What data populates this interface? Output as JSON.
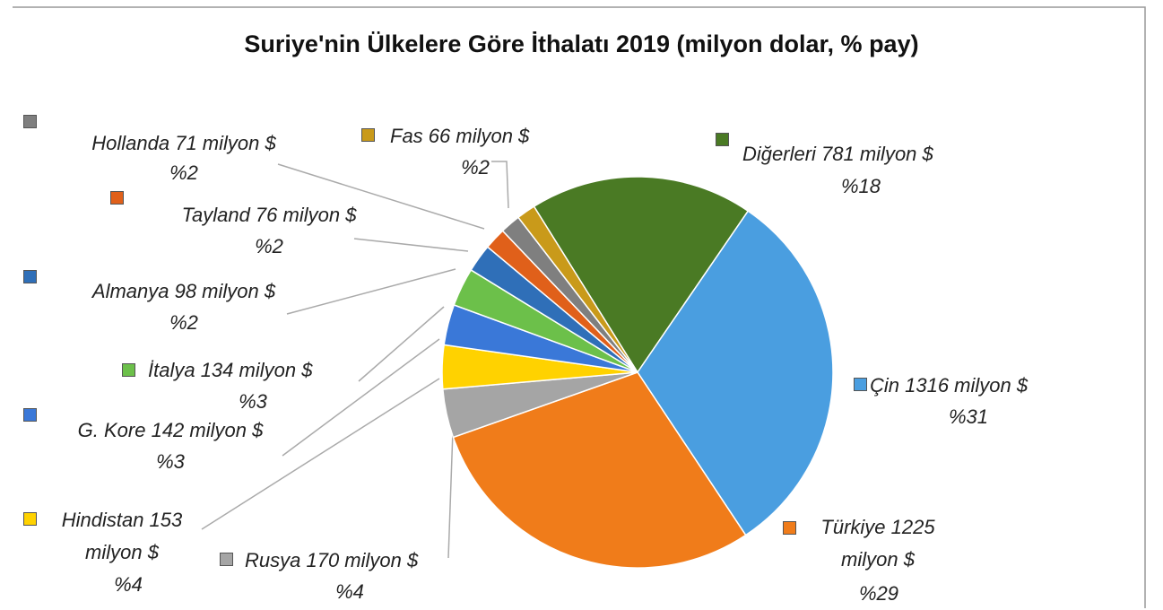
{
  "chart_data": {
    "type": "pie",
    "title": "Suriye'nin Ülkelere Göre İthalatı 2019 (milyon dolar, % pay)",
    "categories": [
      "Diğerleri",
      "Çin",
      "Türkiye",
      "Rusya",
      "Hindistan",
      "G. Kore",
      "İtalya",
      "Almanya",
      "Tayland",
      "Hollanda",
      "Fas"
    ],
    "values": [
      781,
      1316,
      1225,
      170,
      153,
      142,
      134,
      98,
      76,
      71,
      66
    ],
    "value_labels": [
      "Diğerleri 781 milyon $",
      "Çin 1316 milyon $",
      "Türkiye 1225 milyon $",
      "Rusya 170 milyon $",
      "Hindistan 153 milyon $",
      "G. Kore 142 milyon $",
      "İtalya 134 milyon $",
      "Almanya 98 milyon $",
      "Tayland 76 milyon $",
      "Hollanda 71 milyon $",
      "Fas 66 milyon $"
    ],
    "shares": [
      18,
      31,
      29,
      4,
      4,
      3,
      3,
      2,
      2,
      2,
      2
    ],
    "share_labels": [
      "%18",
      "%31",
      "%29",
      "%4",
      "%4",
      "%3",
      "%3",
      "%2",
      "%2",
      "%2",
      "%2"
    ],
    "colors": [
      "#4a7a24",
      "#4a9ee0",
      "#f07c1a",
      "#a5a5a5",
      "#ffd200",
      "#3a78d8",
      "#6cc04a",
      "#2f6fb8",
      "#e0601a",
      "#7f7f7f",
      "#c99a1a"
    ]
  }
}
